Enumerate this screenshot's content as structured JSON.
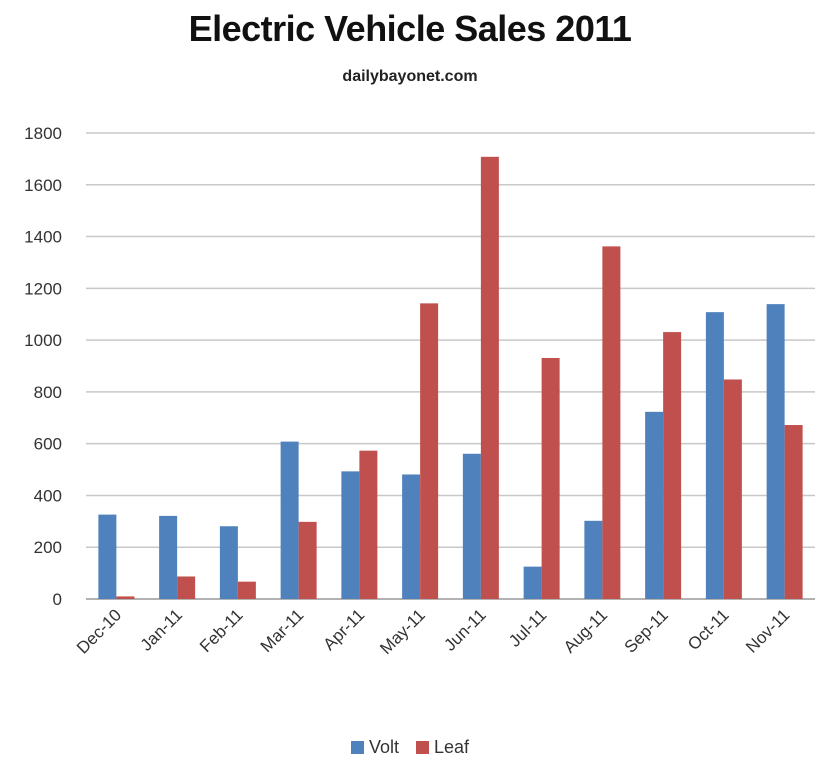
{
  "chart_data": {
    "type": "bar",
    "title": "Electric Vehicle Sales 2011",
    "subtitle": "dailybayonet.com",
    "categories": [
      "Dec-10",
      "Jan-11",
      "Feb-11",
      "Mar-11",
      "Apr-11",
      "May-11",
      "Jun-11",
      "Jul-11",
      "Aug-11",
      "Sep-11",
      "Oct-11",
      "Nov-11"
    ],
    "series": [
      {
        "name": "Volt",
        "color": "#4F81BD",
        "values": [
          326,
          321,
          281,
          608,
          493,
          481,
          561,
          125,
          302,
          723,
          1108,
          1139
        ]
      },
      {
        "name": "Leaf",
        "color": "#C0504D",
        "values": [
          10,
          87,
          67,
          298,
          573,
          1142,
          1708,
          931,
          1362,
          1031,
          848,
          672
        ]
      }
    ],
    "ylim": [
      0,
      1800
    ],
    "yticks": [
      0,
      200,
      400,
      600,
      800,
      1000,
      1200,
      1400,
      1600,
      1800
    ],
    "grid": true,
    "legend_position": "bottom"
  }
}
